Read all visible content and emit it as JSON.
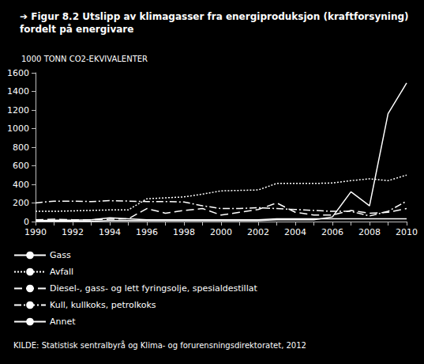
{
  "chart_data": {
    "type": "line",
    "title": "➔ Figur 8.2 Utslipp av klimagasser fra energiproduksjon (kraftforsyning)\nfordelt på energivare",
    "y_label": "1000 TONN CO2-EKVIVALENTER",
    "source": "KILDE: Statistisk sentralbyrå og Klima- og forurensningsdirektoratet, 2012",
    "categories": [
      "1990",
      null,
      "1992",
      null,
      "1994",
      null,
      "1996",
      null,
      "1998",
      null,
      "2000",
      null,
      "2002",
      null,
      "2004",
      null,
      "2006",
      null,
      "2008",
      null,
      "2010"
    ],
    "series": [
      {
        "name": "Gass",
        "color": "#ffffff",
        "line_style": "solid",
        "values": [
          5,
          5,
          5,
          5,
          10,
          10,
          10,
          10,
          10,
          10,
          10,
          10,
          10,
          20,
          20,
          20,
          50,
          320,
          170,
          1160,
          1490
        ]
      },
      {
        "name": "Avfall",
        "color": "#ffffff",
        "line_style": "dotted",
        "values": [
          110,
          110,
          115,
          120,
          125,
          125,
          245,
          255,
          265,
          295,
          330,
          335,
          340,
          410,
          410,
          410,
          415,
          440,
          460,
          440,
          500
        ]
      },
      {
        "name": "Diesel-, gass- og lett fyringsolje, spesialdestillat",
        "color": "#ffffff",
        "line_style": "dashed",
        "values": [
          20,
          25,
          20,
          20,
          25,
          30,
          140,
          90,
          120,
          140,
          70,
          100,
          130,
          200,
          100,
          70,
          70,
          120,
          90,
          100,
          140
        ]
      },
      {
        "name": "Kull, kullkoks, petrolkoks",
        "color": "#ffffff",
        "line_style": "dashdot",
        "values": [
          200,
          220,
          220,
          215,
          225,
          220,
          215,
          215,
          210,
          170,
          140,
          140,
          150,
          140,
          130,
          120,
          110,
          110,
          60,
          110,
          220
        ]
      },
      {
        "name": "Annet",
        "color": "#ffffff",
        "line_style": "solid",
        "values": [
          10,
          15,
          15,
          20,
          40,
          30,
          20,
          20,
          20,
          20,
          20,
          20,
          20,
          30,
          30,
          30,
          30,
          30,
          30,
          30,
          30
        ]
      }
    ],
    "ylim": [
      0,
      1600
    ],
    "yticks": [
      0,
      200,
      400,
      600,
      800,
      1000,
      1200,
      1400,
      1600
    ],
    "grid": false,
    "legend": "bottom-left"
  }
}
